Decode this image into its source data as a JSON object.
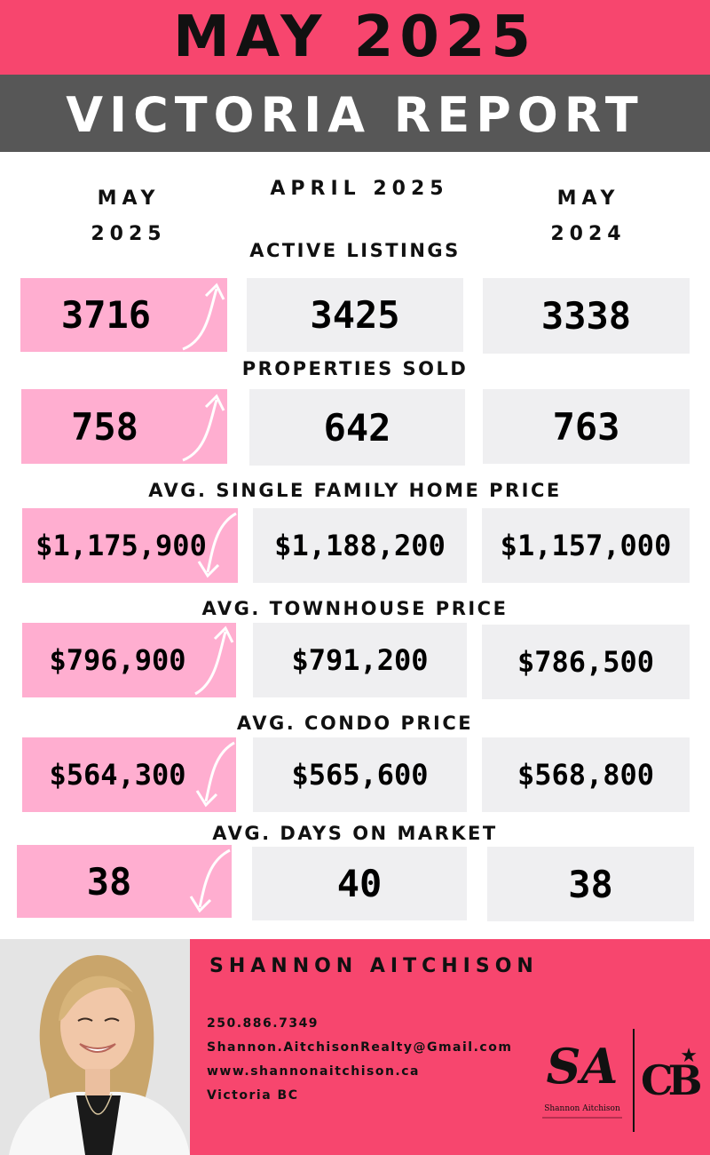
{
  "header": {
    "title": "MAY 2025",
    "subtitle": "VICTORIA REPORT"
  },
  "columns": {
    "current_line1": "MAY",
    "current_line2": "2025",
    "previous_month": "APRIL 2025",
    "last_year_line1": "MAY",
    "last_year_line2": "2024"
  },
  "metrics": [
    {
      "label": "ACTIVE LISTINGS",
      "current": "3716",
      "previous": "3425",
      "last_year": "3338",
      "trend": "up"
    },
    {
      "label": "PROPERTIES SOLD",
      "current": "758",
      "previous": "642",
      "last_year": "763",
      "trend": "up"
    },
    {
      "label": "AVG. SINGLE FAMILY HOME PRICE",
      "current": "$1,175,900",
      "previous": "$1,188,200",
      "last_year": "$1,157,000",
      "trend": "down"
    },
    {
      "label": "AVG. TOWNHOUSE PRICE",
      "current": "$796,900",
      "previous": "$791,200",
      "last_year": "$786,500",
      "trend": "up"
    },
    {
      "label": "AVG. CONDO PRICE",
      "current": "$564,300",
      "previous": "$565,600",
      "last_year": "$568,800",
      "trend": "down"
    },
    {
      "label": "AVG. DAYS ON MARKET",
      "current": "38",
      "previous": "40",
      "last_year": "38",
      "trend": "down"
    }
  ],
  "agent": {
    "name": "SHANNON AITCHISON",
    "phone": "250.886.7349",
    "email": "Shannon.AitchisonRealty@Gmail.com",
    "website": "www.shannonaitchison.ca",
    "location": "Victoria BC",
    "logo_monogram": "SA",
    "logo_name": "Shannon Aitchison",
    "brokerage_logo": "CB"
  },
  "colors": {
    "accent_pink": "#f7466e",
    "header_gray": "#575757",
    "current_box": "#ffaed0",
    "compare_box": "#efeff1"
  },
  "icons": {
    "up": "arrow-up-icon",
    "down": "arrow-down-icon"
  }
}
